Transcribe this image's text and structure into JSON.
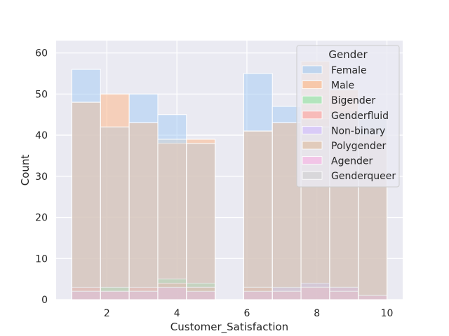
{
  "chart_data": {
    "type": "bar",
    "subtype": "overlaid-histogram",
    "title": "",
    "xlabel": "Customer_Satisfaction",
    "ylabel": "Count",
    "xlim": [
      0.55,
      10.45
    ],
    "ylim": [
      0,
      63
    ],
    "x_ticks": [
      2,
      4,
      6,
      8,
      10
    ],
    "y_ticks": [
      0,
      10,
      20,
      30,
      40,
      50,
      60
    ],
    "grid": true,
    "legend_title": "Gender",
    "legend_position": "top-right",
    "bin_edges": [
      1.0,
      1.818,
      2.636,
      3.455,
      4.273,
      5.091,
      5.909,
      6.727,
      7.545,
      8.364,
      9.182,
      10.0
    ],
    "series": [
      {
        "name": "Female",
        "color": "#a1c9f4",
        "values": [
          56,
          42,
          50,
          45,
          38,
          0,
          55,
          47,
          44,
          46,
          44
        ]
      },
      {
        "name": "Male",
        "color": "#ffb482",
        "values": [
          48,
          50,
          43,
          38,
          39,
          0,
          41,
          43,
          58,
          51,
          40
        ]
      },
      {
        "name": "Bigender",
        "color": "#8de5a1",
        "values": [
          2,
          3,
          2,
          5,
          4,
          0,
          2,
          2,
          3,
          2,
          1
        ]
      },
      {
        "name": "Genderfluid",
        "color": "#ff9f9b",
        "values": [
          3,
          2,
          3,
          4,
          3,
          0,
          3,
          2,
          3,
          3,
          1
        ]
      },
      {
        "name": "Non-binary",
        "color": "#d0bbff",
        "values": [
          2,
          2,
          2,
          3,
          2,
          0,
          2,
          3,
          4,
          3,
          1
        ]
      },
      {
        "name": "Polygender",
        "color": "#debb9b",
        "values": [
          2,
          2,
          2,
          4,
          3,
          0,
          3,
          2,
          3,
          2,
          1
        ]
      },
      {
        "name": "Agender",
        "color": "#fab0e4",
        "values": [
          2,
          2,
          2,
          3,
          2,
          0,
          2,
          2,
          3,
          2,
          1
        ]
      },
      {
        "name": "Genderqueer",
        "color": "#cfcfcf",
        "values": [
          48,
          42,
          43,
          39,
          38,
          0,
          41,
          43,
          42,
          45,
          44
        ]
      }
    ]
  }
}
